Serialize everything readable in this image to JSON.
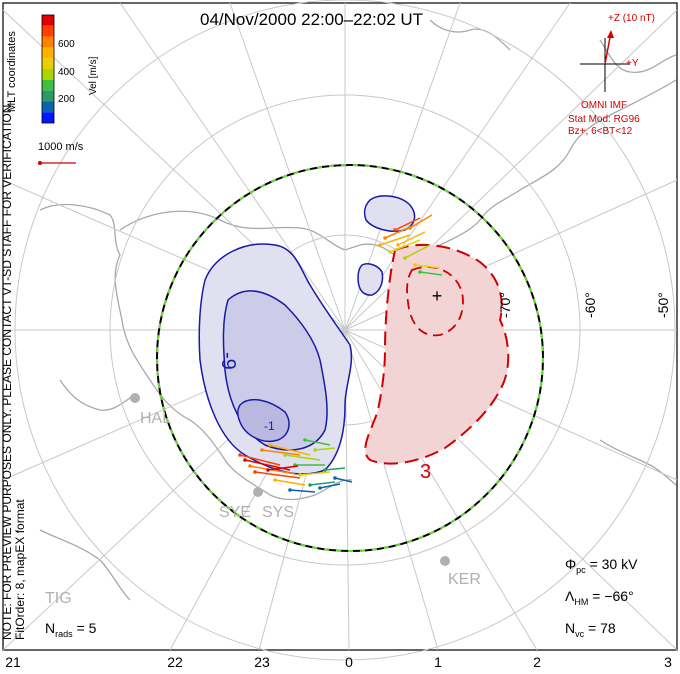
{
  "title": "04/Nov/2000 22:00–22:02 UT",
  "note_line1": "NOTE: FOR PREVIEW PURPOSES ONLY. PLEASE CONTACT VT-SD STAFF FOR VERIFICATION.",
  "note_line2": "FitOrder: 8, mapEX format",
  "colorbar": {
    "label": "Vel [m/s]",
    "coords_label": "MLT coordinates",
    "ticks": [
      "600",
      "400",
      "200"
    ],
    "colors": [
      "#e00000",
      "#ff4000",
      "#ff8000",
      "#ffb000",
      "#e8d000",
      "#a8d800",
      "#40c040",
      "#2a9a6a",
      "#1060b0",
      "#0018ff"
    ]
  },
  "scale": {
    "label": "1000 m/s"
  },
  "imf": {
    "z_label": "+Z (10 nT)",
    "y_label": "+Y",
    "title": "OMNI IMF",
    "model": "Stat Mod: RG96",
    "cond": "Bz+, 6<BT<12"
  },
  "stats": {
    "phi_sym": "Φ",
    "phi_sub": "pc",
    "phi_val": "= 30 kV",
    "lam_sym": "Λ",
    "lam_sub": "HM",
    "lam_val": "= −66°",
    "nvc_sym": "N",
    "nvc_sub": "vc",
    "nvc_val": "= 78",
    "nrads_sym": "N",
    "nrads_sub": "rads",
    "nrads_val": "= 5"
  },
  "mlt_ticks": [
    "21",
    "22",
    "23",
    "0",
    "1",
    "2",
    "3"
  ],
  "lat_labels": [
    "-70°",
    "-60°",
    "-50°"
  ],
  "contour_labels": [
    "-9",
    "-1",
    "3"
  ],
  "stations": [
    "HAL",
    "SYE",
    "SYS",
    "KER",
    "TIG"
  ],
  "potential_max": "+",
  "color_important": {
    "negative_cell": "#1a1aa8",
    "positive_cell": "#d00000",
    "boundary_green": "#66dd33"
  }
}
